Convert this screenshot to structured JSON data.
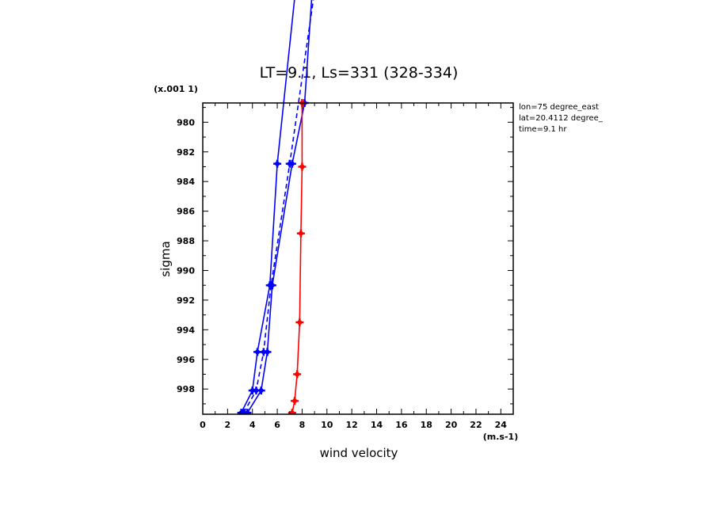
{
  "chart_data": {
    "type": "line",
    "title": "LT=9.1, Ls=331 (328-334)",
    "xlabel": "wind velocity",
    "ylabel": "sigma",
    "x_unit": "(m.s-1)",
    "y_scale_note": "(x.001 1)",
    "xlim": [
      0,
      25
    ],
    "ylim": [
      978.7,
      999.7
    ],
    "x_ticks": [
      "0",
      "2",
      "4",
      "6",
      "8",
      "10",
      "12",
      "14",
      "16",
      "18",
      "20",
      "22",
      "24"
    ],
    "y_ticks": [
      "980",
      "982",
      "984",
      "986",
      "988",
      "990",
      "992",
      "994",
      "996",
      "998"
    ],
    "info_lines": [
      "lon=75 degree_east",
      "lat=20.4112 degree_",
      "time=9.1 hr"
    ],
    "series": [
      {
        "color": "#0000ff",
        "dash": false,
        "points": [
          [
            3.1,
            999.6
          ],
          [
            4.0,
            998.1
          ],
          [
            4.4,
            995.5
          ],
          [
            5.4,
            991.0
          ],
          [
            6.0,
            982.8
          ],
          [
            7.6,
            970.0
          ]
        ]
      },
      {
        "color": "#0000ff",
        "dash": false,
        "points": [
          [
            3.6,
            999.6
          ],
          [
            4.7,
            998.1
          ],
          [
            5.2,
            995.5
          ],
          [
            5.6,
            991.0
          ],
          [
            7.2,
            982.8
          ],
          [
            8.2,
            978.7
          ],
          [
            8.9,
            970.0
          ]
        ]
      },
      {
        "color": "#0000ff",
        "dash": true,
        "points": [
          [
            3.3,
            999.6
          ],
          [
            4.3,
            998.1
          ],
          [
            4.9,
            995.5
          ],
          [
            5.5,
            991.0
          ],
          [
            7.0,
            982.8
          ],
          [
            9.2,
            970.0
          ]
        ]
      },
      {
        "color": "#ff0000",
        "dash": false,
        "points": [
          [
            7.2,
            999.6
          ],
          [
            7.4,
            998.8
          ],
          [
            7.6,
            997.0
          ],
          [
            7.8,
            993.5
          ],
          [
            7.9,
            987.5
          ],
          [
            8.0,
            983.0
          ],
          [
            8.0,
            978.7
          ]
        ]
      }
    ]
  }
}
